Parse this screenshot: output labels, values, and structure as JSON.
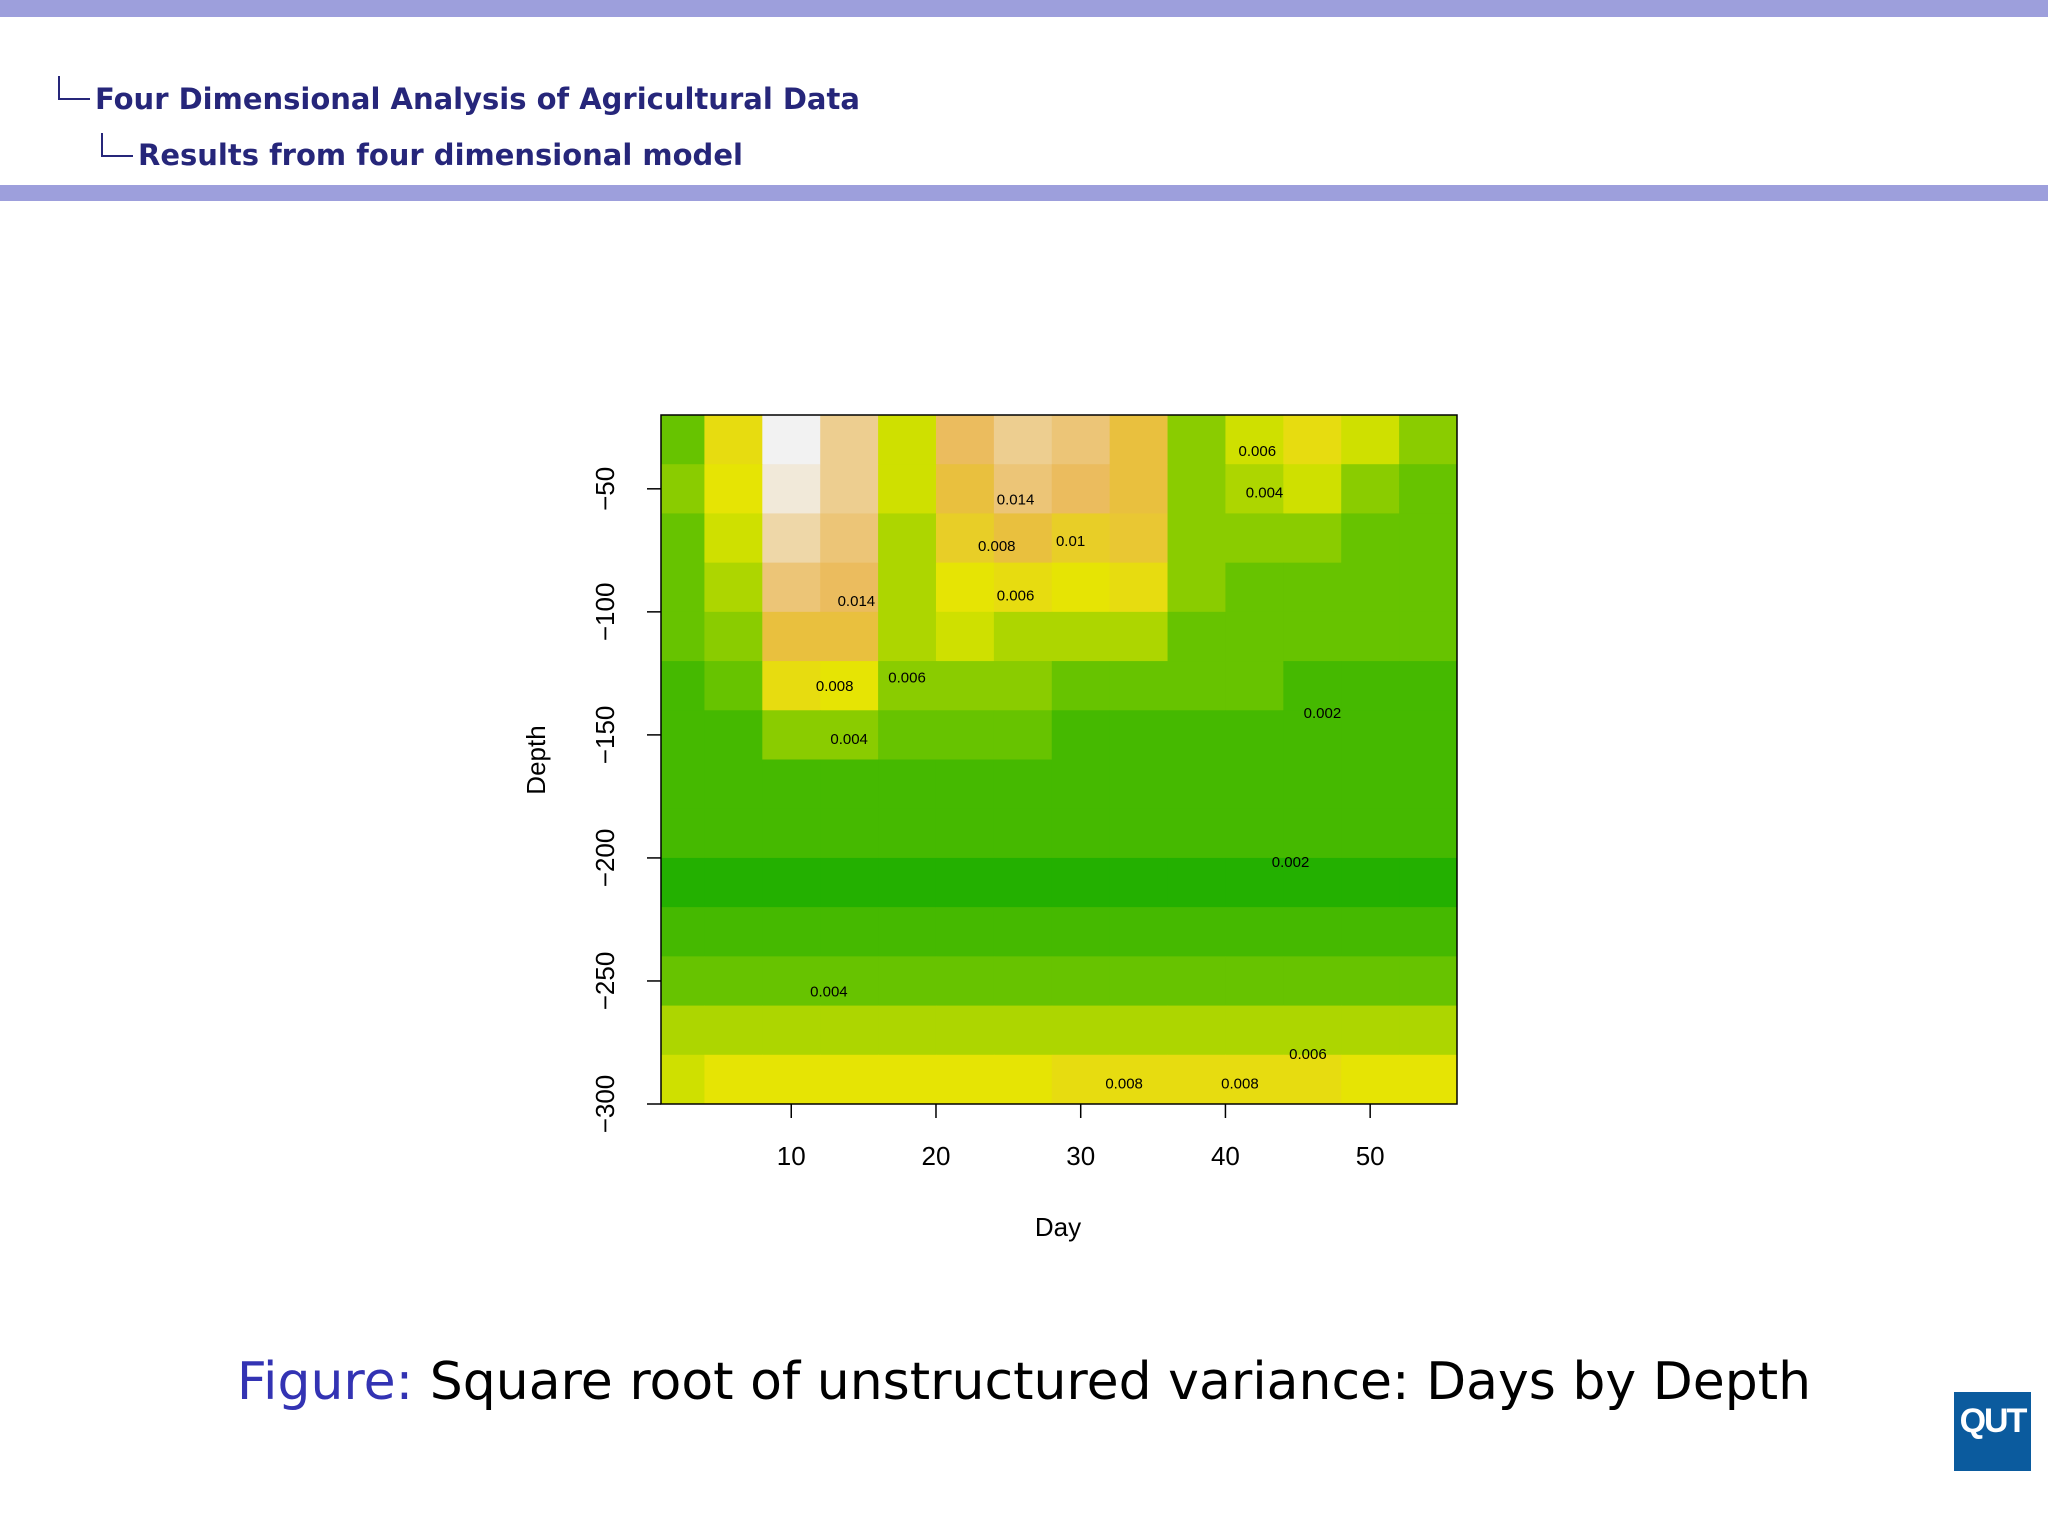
{
  "header": {
    "section": "Four Dimensional Analysis of Agricultural Data",
    "subsection": "Results from four dimensional model"
  },
  "caption": {
    "prefix": "Figure:",
    "text": "Square root of unstructured variance: Days by Depth"
  },
  "logo": "QUT",
  "chart_data": {
    "type": "heatmap",
    "xlabel": "Day",
    "ylabel": "Depth",
    "xlim": [
      1,
      56
    ],
    "ylim": [
      -300,
      -20
    ],
    "xticks": [
      10,
      20,
      30,
      40,
      50
    ],
    "yticks": [
      {
        "value": -50,
        "label": "−50"
      },
      {
        "value": -100,
        "label": "−100"
      },
      {
        "value": -150,
        "label": "−150"
      },
      {
        "value": -200,
        "label": "−200"
      },
      {
        "value": -250,
        "label": "−250"
      },
      {
        "value": -300,
        "label": "−300"
      }
    ],
    "zlim": [
      0,
      0.02
    ],
    "colorscale": [
      "#00A600",
      "#E6E600",
      "#EAB64E",
      "#F2F2F2"
    ],
    "x": [
      2,
      6,
      10,
      14,
      18,
      22,
      26,
      30,
      34,
      38,
      42,
      46,
      50,
      54
    ],
    "y": [
      -30,
      -50,
      -70,
      -90,
      -110,
      -130,
      -150,
      -170,
      -190,
      -210,
      -230,
      -250,
      -270,
      -290
    ],
    "z": [
      [
        0.003,
        0.008,
        0.02,
        0.016,
        0.006,
        0.014,
        0.016,
        0.015,
        0.012,
        0.004,
        0.006,
        0.008,
        0.006,
        0.004
      ],
      [
        0.004,
        0.007,
        0.019,
        0.016,
        0.006,
        0.012,
        0.015,
        0.014,
        0.012,
        0.004,
        0.005,
        0.006,
        0.004,
        0.003
      ],
      [
        0.003,
        0.006,
        0.017,
        0.015,
        0.005,
        0.01,
        0.012,
        0.01,
        0.011,
        0.004,
        0.004,
        0.004,
        0.003,
        0.003
      ],
      [
        0.003,
        0.005,
        0.015,
        0.014,
        0.005,
        0.007,
        0.008,
        0.007,
        0.008,
        0.004,
        0.003,
        0.003,
        0.003,
        0.003
      ],
      [
        0.003,
        0.004,
        0.012,
        0.012,
        0.005,
        0.006,
        0.005,
        0.005,
        0.005,
        0.003,
        0.003,
        0.003,
        0.003,
        0.003
      ],
      [
        0.002,
        0.003,
        0.008,
        0.007,
        0.004,
        0.004,
        0.004,
        0.003,
        0.003,
        0.003,
        0.003,
        0.002,
        0.002,
        0.002
      ],
      [
        0.002,
        0.002,
        0.004,
        0.004,
        0.003,
        0.003,
        0.003,
        0.002,
        0.002,
        0.002,
        0.002,
        0.002,
        0.002,
        0.002
      ],
      [
        0.002,
        0.002,
        0.002,
        0.002,
        0.002,
        0.002,
        0.002,
        0.002,
        0.002,
        0.002,
        0.002,
        0.002,
        0.002,
        0.002
      ],
      [
        0.002,
        0.002,
        0.002,
        0.002,
        0.002,
        0.002,
        0.002,
        0.002,
        0.002,
        0.002,
        0.002,
        0.002,
        0.002,
        0.002
      ],
      [
        0.001,
        0.001,
        0.001,
        0.001,
        0.001,
        0.001,
        0.001,
        0.001,
        0.001,
        0.001,
        0.001,
        0.001,
        0.001,
        0.001
      ],
      [
        0.002,
        0.002,
        0.002,
        0.002,
        0.002,
        0.002,
        0.002,
        0.002,
        0.002,
        0.002,
        0.002,
        0.002,
        0.002,
        0.002
      ],
      [
        0.003,
        0.003,
        0.003,
        0.003,
        0.003,
        0.003,
        0.003,
        0.003,
        0.003,
        0.003,
        0.003,
        0.003,
        0.003,
        0.003
      ],
      [
        0.005,
        0.005,
        0.005,
        0.005,
        0.005,
        0.005,
        0.005,
        0.005,
        0.005,
        0.005,
        0.005,
        0.005,
        0.005,
        0.005
      ],
      [
        0.006,
        0.007,
        0.007,
        0.007,
        0.007,
        0.007,
        0.007,
        0.008,
        0.008,
        0.008,
        0.008,
        0.008,
        0.007,
        0.007
      ]
    ],
    "contour_labels": [
      {
        "x": 46.7,
        "y": -141.6,
        "level": 0.002
      },
      {
        "x": 44.5,
        "y": -202,
        "level": 0.002
      },
      {
        "x": 12.6,
        "y": -254.7,
        "level": 0.004
      },
      {
        "x": 45.7,
        "y": -280,
        "level": 0.006
      },
      {
        "x": 33,
        "y": -292,
        "level": 0.008
      },
      {
        "x": 41,
        "y": -292,
        "level": 0.008
      },
      {
        "x": 14,
        "y": -152,
        "level": 0.004
      },
      {
        "x": 13,
        "y": -130.5,
        "level": 0.008
      },
      {
        "x": 18,
        "y": -127,
        "level": 0.006
      },
      {
        "x": 25.5,
        "y": -93.7,
        "level": 0.006
      },
      {
        "x": 24.2,
        "y": -73.7,
        "level": 0.008
      },
      {
        "x": 29.3,
        "y": -71.6,
        "level": 0.01
      },
      {
        "x": 25.5,
        "y": -54.7,
        "level": 0.014
      },
      {
        "x": 42.7,
        "y": -52,
        "level": 0.004
      },
      {
        "x": 42.2,
        "y": -35,
        "level": 0.006
      },
      {
        "x": 14.5,
        "y": -96,
        "level": 0.014
      }
    ]
  }
}
